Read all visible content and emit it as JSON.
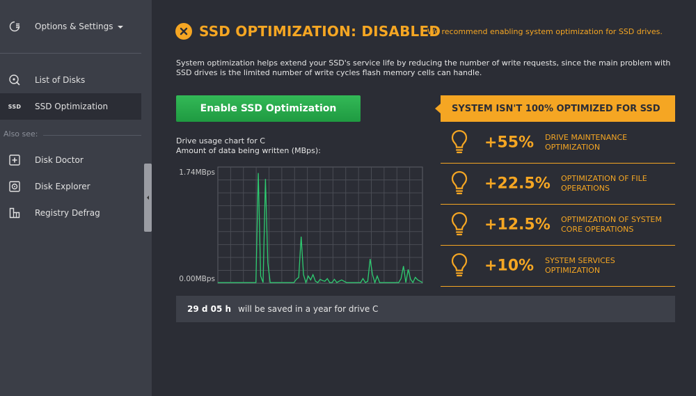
{
  "sidebar": {
    "header_label": "Options & Settings",
    "items": [
      {
        "label": "List of Disks",
        "icon": "disk-search-icon"
      },
      {
        "label": "SSD Optimization",
        "icon": "ssd-icon",
        "icon_text": "SSD",
        "active": true
      }
    ],
    "also_see_label": "Also see:",
    "also_see_items": [
      {
        "label": "Disk Doctor",
        "icon": "plus-box-icon"
      },
      {
        "label": "Disk Explorer",
        "icon": "disk-explorer-icon"
      },
      {
        "label": "Registry Defrag",
        "icon": "registry-icon"
      }
    ]
  },
  "status": {
    "title": "SSD OPTIMIZATION: DISABLED",
    "recommendation": "We recommend enabling system optimization for SSD drives.",
    "icon": "close-circle-icon",
    "color": "#f5a623"
  },
  "description": "System optimization helps extend your SSD's service life by reducing the number of write requests, since the main problem with SSD drives is the limited number of write cycles flash memory cells can handle.",
  "enable_button_label": "Enable SSD Optimization",
  "chart": {
    "caption_line1": "Drive usage chart for C",
    "caption_line2": "Amount of data being written (MBps):",
    "y_max_label": "1.74MBps",
    "y_min_label": "0.00MBps"
  },
  "chart_data": {
    "type": "line",
    "title": "",
    "ylabel": "Amount of data being written (MBps)",
    "ylim": [
      0,
      1.74
    ],
    "grid": true,
    "series": [
      {
        "values": [
          0,
          0,
          0,
          0,
          0,
          0,
          0,
          0,
          0,
          0,
          0,
          0,
          0,
          0,
          0,
          0,
          0,
          1.67,
          0.1,
          0,
          1.58,
          0.3,
          0,
          0,
          0,
          0,
          0,
          0,
          0,
          0,
          0,
          0,
          0,
          0.05,
          0.08,
          0.7,
          0.12,
          0,
          0.1,
          0.04,
          0.12,
          0.02,
          0,
          0.05,
          0.03,
          0.02,
          0.06,
          0,
          0,
          0.05,
          0,
          0.02,
          0.04,
          0.02,
          0,
          0,
          0,
          0,
          0,
          0,
          0,
          0.06,
          0,
          0.02,
          0.36,
          0.12,
          0,
          0.1,
          0,
          0,
          0,
          0,
          0,
          0,
          0,
          0,
          0,
          0.06,
          0.25,
          0,
          0.2,
          0.05,
          0,
          0.08,
          0.04,
          0.02,
          0
        ],
        "color": "#2ecc71"
      }
    ]
  },
  "summary": {
    "banner": "SYSTEM ISN'T 100% OPTIMIZED FOR SSD",
    "items": [
      {
        "pct": "+55%",
        "label": "DRIVE MAINTENANCE OPTIMIZATION",
        "icon": "lightbulb-icon"
      },
      {
        "pct": "+22.5%",
        "label": "OPTIMIZATION OF FILE OPERATIONS",
        "icon": "lightbulb-icon"
      },
      {
        "pct": "+12.5%",
        "label": "OPTIMIZATION OF SYSTEM CORE OPERATIONS",
        "icon": "lightbulb-icon"
      },
      {
        "pct": "+10%",
        "label": "SYSTEM SERVICES OPTIMIZATION",
        "icon": "lightbulb-icon"
      }
    ]
  },
  "savings": {
    "value": "29 d 05 h",
    "text": "will be saved in a year for drive C"
  }
}
